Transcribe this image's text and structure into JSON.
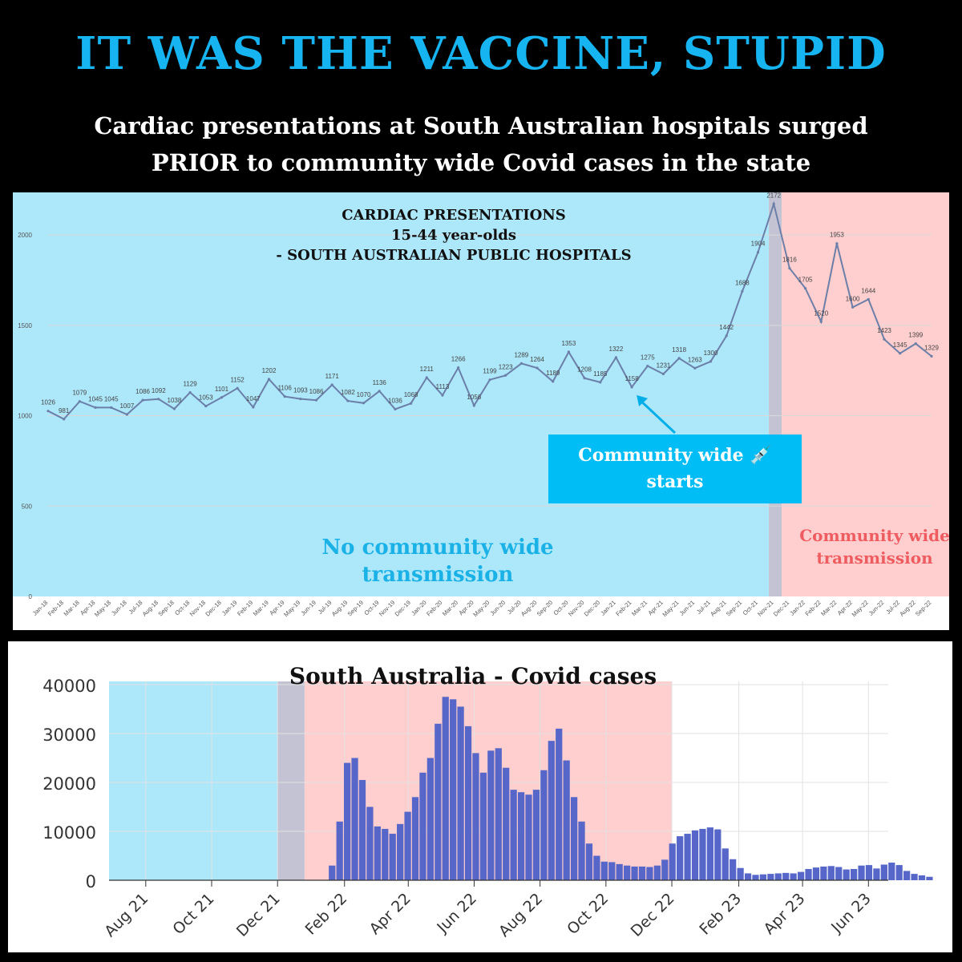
{
  "header": {
    "headline": "IT WAS THE VACCINE, STUPID",
    "subhead_line1": "Cardiac presentations at South Australian hospitals surged",
    "subhead_line2": "PRIOR to community wide Covid cases in the state"
  },
  "colors": {
    "headline": "#16b4f0",
    "no_transmission_shade": "#9fe3f9",
    "transmission_shade": "#ffc9c9",
    "line": "#6b7fa8",
    "bars": "#5667c9",
    "callout": "#00bdf5"
  },
  "annotations": {
    "callout_line1": "Community wide 💉",
    "callout_line2": "starts",
    "no_transmission_line1": "No community wide",
    "no_transmission_line2": "transmission",
    "transmission_line1": "Community wide",
    "transmission_line2": "transmission"
  },
  "chart_data": [
    {
      "type": "line",
      "title": "CARDIAC PRESENTATIONS",
      "subtitle": "15-44 year-olds",
      "subtitle2": "- SOUTH AUSTRALIAN PUBLIC HOSPITALS",
      "x": [
        "Jan-18",
        "Feb-18",
        "Mar-18",
        "Apr-18",
        "May-18",
        "Jun-18",
        "Jul-18",
        "Aug-18",
        "Sep-18",
        "Oct-18",
        "Nov-18",
        "Dec-18",
        "Jan-19",
        "Feb-19",
        "Mar-19",
        "Apr-19",
        "May-19",
        "Jun-19",
        "Jul-19",
        "Aug-19",
        "Sep-19",
        "Oct-19",
        "Nov-19",
        "Dec-19",
        "Jan-20",
        "Feb-20",
        "Mar-20",
        "Apr-20",
        "May-20",
        "Jun-20",
        "Jul-20",
        "Aug-20",
        "Sep-20",
        "Oct-20",
        "Nov-20",
        "Dec-20",
        "Jan-21",
        "Feb-21",
        "Mar-21",
        "Apr-21",
        "May-21",
        "Jun-21",
        "Jul-21",
        "Aug-21",
        "Sep-21",
        "Oct-21",
        "Nov-21",
        "Dec-21",
        "Jan-22",
        "Feb-22",
        "Mar-22",
        "Apr-22",
        "May-22",
        "Jun-22",
        "Jul-22",
        "Aug-22",
        "Sep-22"
      ],
      "values": [
        1026,
        981,
        1079,
        1045,
        1045,
        1007,
        1086,
        1092,
        1038,
        1129,
        1053,
        1101,
        1152,
        1047,
        1202,
        1106,
        1093,
        1086,
        1171,
        1082,
        1070,
        1136,
        1036,
        1068,
        1211,
        1113,
        1266,
        1056,
        1199,
        1223,
        1289,
        1264,
        1189,
        1353,
        1208,
        1185,
        1322,
        1158,
        1275,
        1231,
        1318,
        1263,
        1300,
        1442,
        1688,
        1904,
        2172,
        1816,
        1705,
        1520,
        1953,
        1600,
        1644,
        1423,
        1345,
        1399,
        1329
      ],
      "ylim": [
        0,
        2200
      ],
      "yticks": [
        0,
        500,
        1000,
        1500,
        2000
      ],
      "grid": true,
      "shaded_regions": [
        {
          "label": "No community wide transmission",
          "from": "Jan-18",
          "to": "Nov-21"
        },
        {
          "label": "Community wide transmission",
          "from": "Dec-21",
          "to": "Sep-22"
        }
      ]
    },
    {
      "type": "bar",
      "title": "South Australia - Covid cases",
      "x_tick_labels": [
        "Aug 21",
        "Oct 21",
        "Dec 21",
        "Feb 22",
        "Apr 22",
        "Jun 22",
        "Aug 22",
        "Oct 22",
        "Dec 22",
        "Feb 23",
        "Apr 23",
        "Jun 23"
      ],
      "ylim": [
        0,
        40000
      ],
      "yticks": [
        0,
        10000,
        20000,
        30000,
        40000
      ],
      "grid": true,
      "x_start": "2021-06-28",
      "interval": "weekly",
      "values": [
        0,
        0,
        0,
        0,
        0,
        0,
        0,
        0,
        0,
        0,
        0,
        0,
        0,
        0,
        0,
        0,
        0,
        0,
        0,
        0,
        0,
        0,
        0,
        0,
        0,
        0,
        0,
        0,
        0,
        3000,
        12000,
        24000,
        25000,
        20500,
        15000,
        11000,
        10500,
        9500,
        11500,
        14000,
        17000,
        22000,
        25000,
        32000,
        37500,
        37000,
        35500,
        31500,
        26000,
        22000,
        26500,
        27000,
        23000,
        18500,
        18000,
        17500,
        18500,
        22500,
        28500,
        31000,
        24500,
        17000,
        12000,
        7500,
        5000,
        3800,
        3700,
        3300,
        3000,
        2800,
        2800,
        2700,
        3000,
        4200,
        7500,
        9000,
        9500,
        10200,
        10500,
        10800,
        10400,
        6500,
        4300,
        2500,
        1400,
        1100,
        1200,
        1300,
        1400,
        1500,
        1400,
        1700,
        2300,
        2600,
        2800,
        2900,
        2700,
        2200,
        2300,
        3000,
        3100,
        2400,
        3200,
        3600,
        3100,
        1900,
        1300,
        1000,
        700
      ]
    }
  ]
}
